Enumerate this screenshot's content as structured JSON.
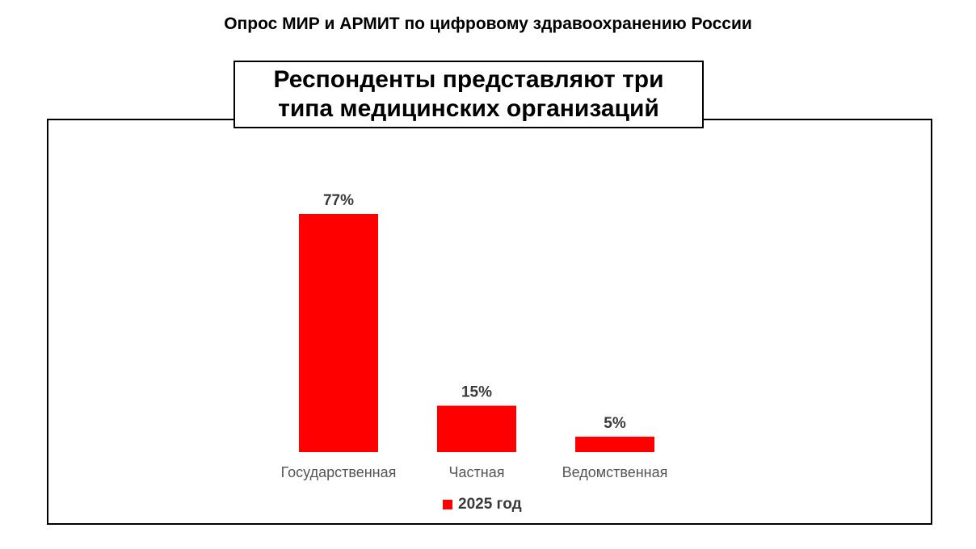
{
  "page": {
    "title": "Опрос МИР и АРМИТ по цифровому здравоохранению России"
  },
  "chart_data": {
    "type": "bar",
    "title": "Респонденты представляют три\nтипа медицинских организаций",
    "categories": [
      "Государственная",
      "Частная",
      "Ведомственная"
    ],
    "series": [
      {
        "name": "2025 год",
        "values": [
          77,
          15,
          5
        ],
        "labels": [
          "77%",
          "15%",
          "5%"
        ],
        "color": "#ff0000"
      }
    ],
    "ylim": [
      0,
      77
    ],
    "grid": false,
    "legend_position": "bottom",
    "xlabel": "",
    "ylabel": ""
  }
}
